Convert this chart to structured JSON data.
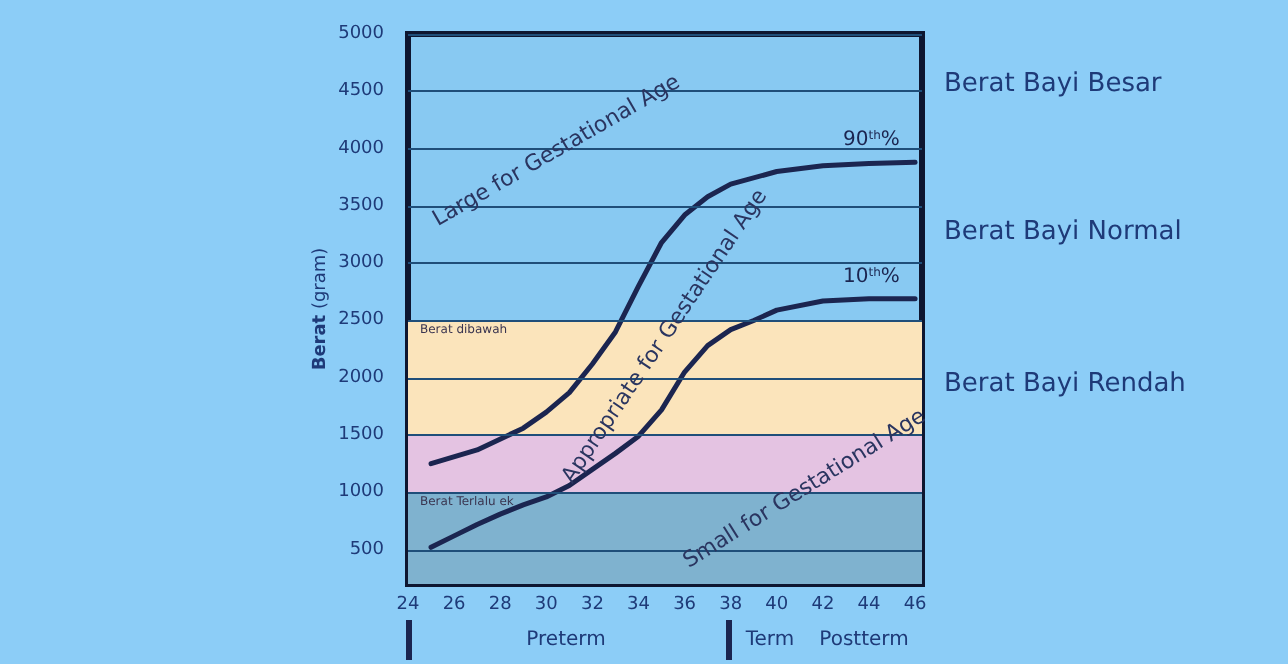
{
  "chart_data": {
    "type": "line",
    "ylabel": "Berat (gram)",
    "xlim": [
      24,
      46.3
    ],
    "xticks": [
      24,
      26,
      28,
      30,
      32,
      34,
      36,
      38,
      40,
      42,
      44,
      46
    ],
    "ylim": [
      200,
      5000
    ],
    "yticks": [
      500,
      1000,
      1500,
      2000,
      2500,
      3000,
      3500,
      4000,
      4500,
      5000
    ],
    "grid": "y",
    "legend": false,
    "marker": "none",
    "line_style": "solid",
    "series": [
      {
        "name": "90$^{th}$%",
        "color": "#1b2550",
        "x": [
          25,
          27,
          29,
          30,
          31,
          32,
          33,
          34,
          35,
          36,
          37,
          38,
          40,
          42,
          44,
          46
        ],
        "values": [
          1250,
          1370,
          1560,
          1700,
          1870,
          2120,
          2400,
          2800,
          3180,
          3420,
          3580,
          3690,
          3800,
          3850,
          3870,
          3880
        ]
      },
      {
        "name": "10$^{th}$%",
        "color": "#1b2550",
        "x": [
          25,
          26,
          27,
          28,
          29,
          30,
          31,
          32,
          33,
          34,
          35,
          36,
          37,
          38,
          39,
          40,
          42,
          44,
          46
        ],
        "values": [
          520,
          620,
          720,
          810,
          890,
          960,
          1060,
          1200,
          1340,
          1490,
          1720,
          2050,
          2280,
          2420,
          2500,
          2590,
          2670,
          2690,
          2690
        ]
      }
    ],
    "bands": [
      {
        "axis": "y",
        "from": 200,
        "to": 1000,
        "label": "Berat Terlalu ek",
        "color": "#7fb2cf"
      },
      {
        "axis": "y",
        "from": 1000,
        "to": 1500,
        "label": null,
        "color": "#e4c3e2"
      },
      {
        "axis": "y",
        "from": 1500,
        "to": 2500,
        "label": "Berat dibawah",
        "color": "#fbe4bb"
      }
    ],
    "annotations": [
      "Large for Gestational Age",
      "Appropriate for Gestational Age",
      "Small for Gestational Age",
      "Berat Bayi Besar",
      "Berat Bayi Normal",
      "Berat Bayi Rendah",
      "Preterm",
      "Term",
      "Postterm"
    ]
  }
}
